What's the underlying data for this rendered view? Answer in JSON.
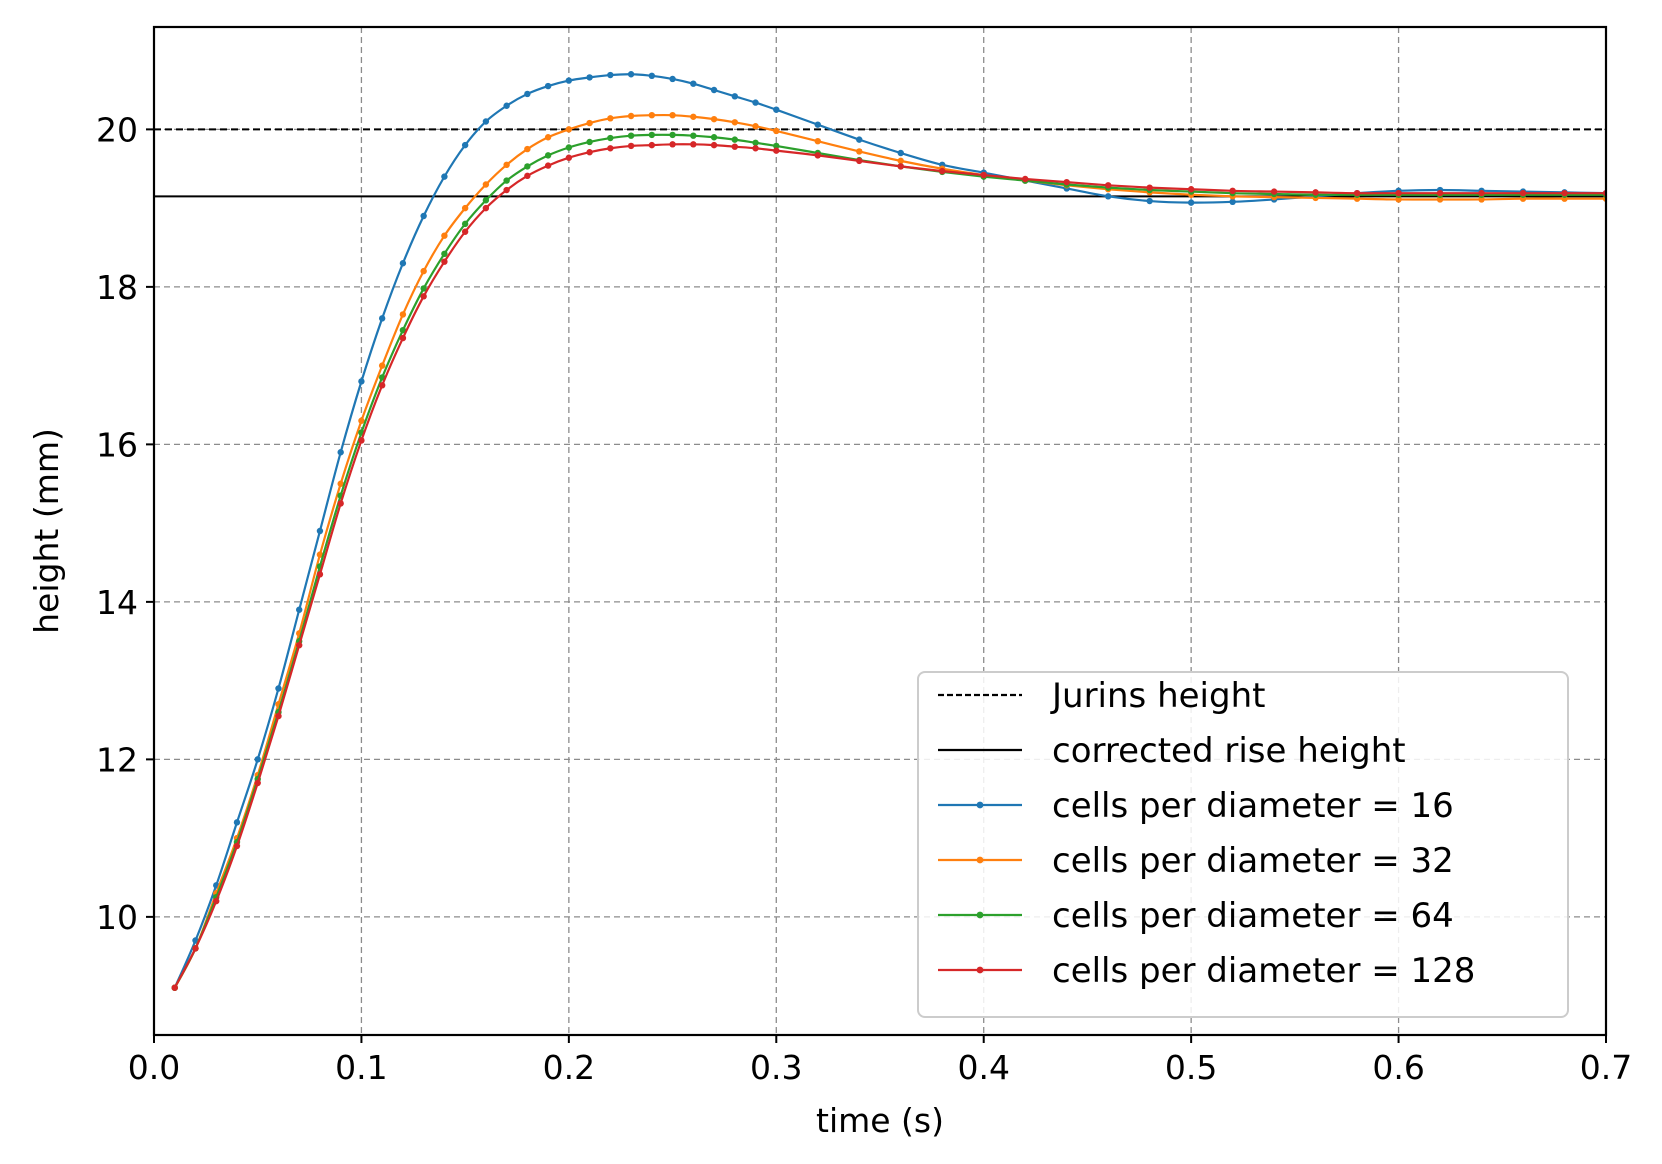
{
  "chart_data": {
    "type": "line",
    "title": "",
    "xlabel": "time (s)",
    "ylabel": "height (mm)",
    "xlim": [
      0.0,
      0.7
    ],
    "ylim": [
      8.5,
      21.3
    ],
    "xticks": [
      0.0,
      0.1,
      0.2,
      0.3,
      0.4,
      0.5,
      0.6,
      0.7
    ],
    "xtick_labels": [
      "0.0",
      "0.1",
      "0.2",
      "0.3",
      "0.4",
      "0.5",
      "0.6",
      "0.7"
    ],
    "yticks": [
      10,
      12,
      14,
      16,
      18,
      20
    ],
    "ytick_labels": [
      "10",
      "12",
      "14",
      "16",
      "18",
      "20"
    ],
    "grid": true,
    "legend_position": "lower-right",
    "reference_lines": [
      {
        "name": "Jurins height",
        "y": 20.0,
        "style": "dashed",
        "color": "#000000"
      },
      {
        "name": "corrected rise height",
        "y": 19.15,
        "style": "solid",
        "color": "#000000"
      }
    ],
    "series": [
      {
        "name": "cells per diameter = 16",
        "color": "#1f77b4",
        "x": [
          0.01,
          0.02,
          0.03,
          0.04,
          0.05,
          0.06,
          0.07,
          0.08,
          0.09,
          0.1,
          0.11,
          0.12,
          0.13,
          0.14,
          0.15,
          0.16,
          0.17,
          0.18,
          0.19,
          0.2,
          0.21,
          0.22,
          0.23,
          0.24,
          0.25,
          0.26,
          0.27,
          0.28,
          0.29,
          0.3,
          0.32,
          0.34,
          0.36,
          0.38,
          0.4,
          0.42,
          0.44,
          0.46,
          0.48,
          0.5,
          0.52,
          0.54,
          0.56,
          0.58,
          0.6,
          0.62,
          0.64,
          0.66,
          0.68,
          0.7
        ],
        "y": [
          9.1,
          9.7,
          10.4,
          11.2,
          12.0,
          12.9,
          13.9,
          14.9,
          15.9,
          16.8,
          17.6,
          18.3,
          18.9,
          19.4,
          19.8,
          20.1,
          20.3,
          20.45,
          20.55,
          20.62,
          20.66,
          20.69,
          20.7,
          20.68,
          20.64,
          20.58,
          20.5,
          20.42,
          20.34,
          20.25,
          20.06,
          19.87,
          19.7,
          19.55,
          19.45,
          19.35,
          19.25,
          19.15,
          19.09,
          19.07,
          19.08,
          19.11,
          19.15,
          19.19,
          19.22,
          19.23,
          19.22,
          19.21,
          19.2,
          19.19
        ]
      },
      {
        "name": "cells per diameter = 32",
        "color": "#ff7f0e",
        "x": [
          0.01,
          0.02,
          0.03,
          0.04,
          0.05,
          0.06,
          0.07,
          0.08,
          0.09,
          0.1,
          0.11,
          0.12,
          0.13,
          0.14,
          0.15,
          0.16,
          0.17,
          0.18,
          0.19,
          0.2,
          0.21,
          0.22,
          0.23,
          0.24,
          0.25,
          0.26,
          0.27,
          0.28,
          0.29,
          0.3,
          0.32,
          0.34,
          0.36,
          0.38,
          0.4,
          0.42,
          0.44,
          0.46,
          0.48,
          0.5,
          0.52,
          0.54,
          0.56,
          0.58,
          0.6,
          0.62,
          0.64,
          0.66,
          0.68,
          0.7
        ],
        "y": [
          9.1,
          9.6,
          10.3,
          11.0,
          11.8,
          12.7,
          13.6,
          14.6,
          15.5,
          16.3,
          17.0,
          17.65,
          18.2,
          18.65,
          19.0,
          19.3,
          19.55,
          19.75,
          19.9,
          20.0,
          20.08,
          20.14,
          20.17,
          20.18,
          20.18,
          20.16,
          20.13,
          20.09,
          20.04,
          19.98,
          19.85,
          19.72,
          19.6,
          19.5,
          19.42,
          19.35,
          19.29,
          19.24,
          19.2,
          19.17,
          19.15,
          19.14,
          19.13,
          19.12,
          19.11,
          19.11,
          19.11,
          19.12,
          19.12,
          19.12
        ]
      },
      {
        "name": "cells per diameter = 64",
        "color": "#2ca02c",
        "x": [
          0.01,
          0.02,
          0.03,
          0.04,
          0.05,
          0.06,
          0.07,
          0.08,
          0.09,
          0.1,
          0.11,
          0.12,
          0.13,
          0.14,
          0.15,
          0.16,
          0.17,
          0.18,
          0.19,
          0.2,
          0.21,
          0.22,
          0.23,
          0.24,
          0.25,
          0.26,
          0.27,
          0.28,
          0.29,
          0.3,
          0.32,
          0.34,
          0.36,
          0.38,
          0.4,
          0.42,
          0.44,
          0.46,
          0.48,
          0.5,
          0.52,
          0.54,
          0.56,
          0.58,
          0.6,
          0.62,
          0.64,
          0.66,
          0.68,
          0.7
        ],
        "y": [
          9.1,
          9.6,
          10.25,
          10.95,
          11.75,
          12.6,
          13.5,
          14.45,
          15.35,
          16.15,
          16.85,
          17.45,
          17.98,
          18.42,
          18.8,
          19.1,
          19.35,
          19.53,
          19.67,
          19.77,
          19.84,
          19.89,
          19.92,
          19.93,
          19.93,
          19.92,
          19.9,
          19.87,
          19.83,
          19.79,
          19.7,
          19.61,
          19.53,
          19.46,
          19.4,
          19.35,
          19.3,
          19.26,
          19.23,
          19.21,
          19.19,
          19.18,
          19.17,
          19.17,
          19.17,
          19.17,
          19.17,
          19.17,
          19.17,
          19.17
        ]
      },
      {
        "name": "cells per diameter = 128",
        "color": "#d62728",
        "x": [
          0.01,
          0.02,
          0.03,
          0.04,
          0.05,
          0.06,
          0.07,
          0.08,
          0.09,
          0.1,
          0.11,
          0.12,
          0.13,
          0.14,
          0.15,
          0.16,
          0.17,
          0.18,
          0.19,
          0.2,
          0.21,
          0.22,
          0.23,
          0.24,
          0.25,
          0.26,
          0.27,
          0.28,
          0.29,
          0.3,
          0.32,
          0.34,
          0.36,
          0.38,
          0.4,
          0.42,
          0.44,
          0.46,
          0.48,
          0.5,
          0.52,
          0.54,
          0.56,
          0.58,
          0.6,
          0.62,
          0.64,
          0.66,
          0.68,
          0.7
        ],
        "y": [
          9.1,
          9.6,
          10.2,
          10.9,
          11.7,
          12.55,
          13.45,
          14.35,
          15.25,
          16.05,
          16.75,
          17.35,
          17.88,
          18.32,
          18.7,
          19.0,
          19.23,
          19.41,
          19.54,
          19.64,
          19.71,
          19.76,
          19.79,
          19.8,
          19.81,
          19.81,
          19.8,
          19.78,
          19.76,
          19.73,
          19.67,
          19.6,
          19.53,
          19.47,
          19.42,
          19.37,
          19.33,
          19.29,
          19.26,
          19.24,
          19.22,
          19.21,
          19.2,
          19.19,
          19.19,
          19.19,
          19.19,
          19.19,
          19.19,
          19.19
        ]
      }
    ]
  }
}
